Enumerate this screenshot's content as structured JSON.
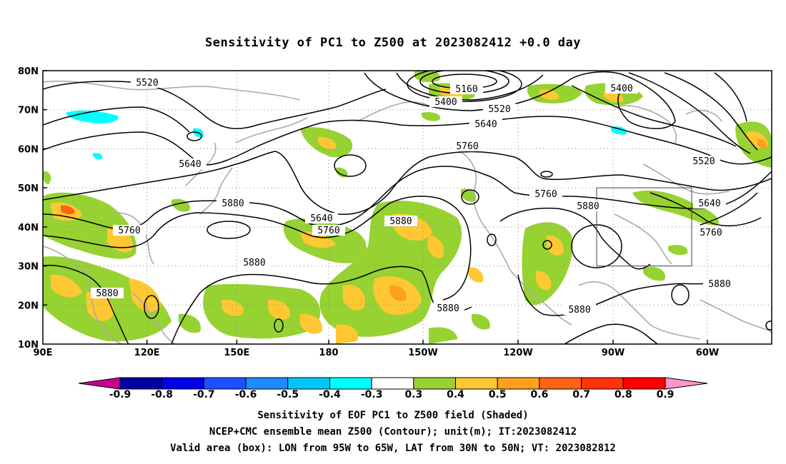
{
  "title": "Sensitivity of PC1 to Z500 at 2023082412 +0.0 day",
  "map": {
    "lat_labels": [
      "80N",
      "70N",
      "60N",
      "50N",
      "40N",
      "30N",
      "20N",
      "10N"
    ],
    "lon_labels": [
      "90E",
      "120E",
      "150E",
      "180",
      "150W",
      "120W",
      "90W",
      "60W"
    ],
    "contour_labels": [
      "5520",
      "5160",
      "5400",
      "5520",
      "5400",
      "5640",
      "5760",
      "5640",
      "5520",
      "5880",
      "5760",
      "5640",
      "5760",
      "5880",
      "5760",
      "5880",
      "5640",
      "5760",
      "5880",
      "5880",
      "5880",
      "5880",
      "5880"
    ],
    "valid_box": {
      "lon_from": "95W",
      "lon_to": "65W",
      "lat_from": "30N",
      "lat_to": "50N"
    }
  },
  "colorbar": {
    "labels": [
      "-0.9",
      "-0.8",
      "-0.7",
      "-0.6",
      "-0.5",
      "-0.4",
      "-0.3",
      "0.3",
      "0.4",
      "0.5",
      "0.6",
      "0.7",
      "0.8",
      "0.9"
    ],
    "colors": [
      "#0000a0",
      "#0000e6",
      "#1e50ff",
      "#1e8cff",
      "#00c8ff",
      "#00ffff",
      "#ffffff",
      "#96d232",
      "#ffc832",
      "#ffa01e",
      "#ff6414",
      "#ff320a",
      "#ff0000"
    ],
    "left_arrow_color": "#c8008c",
    "right_arrow_color": "#ff96c8"
  },
  "footer": {
    "line1": "Sensitivity of EOF PC1 to Z500 field (Shaded)",
    "line2": "NCEP+CMC ensemble mean Z500 (Contour); unit(m); IT:2023082412",
    "line3": "Valid area (box): LON from 95W to 65W, LAT from 30N to 50N; VT: 2023082812"
  }
}
